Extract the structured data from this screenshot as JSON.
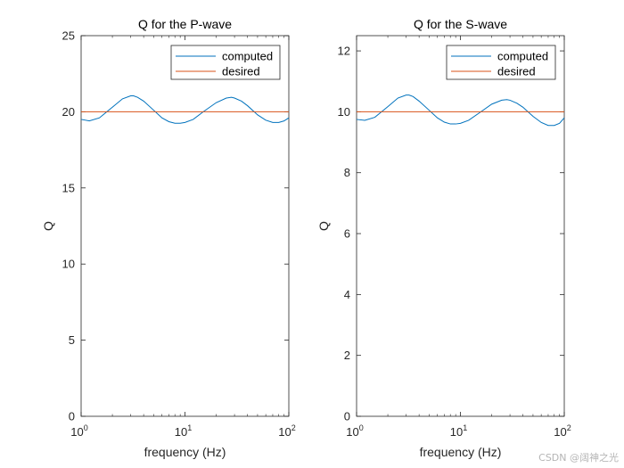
{
  "chart_data": [
    {
      "type": "line",
      "title": "Q for the P-wave",
      "xlabel": "frequency (Hz)",
      "ylabel": "Q",
      "xscale": "log",
      "xlim": [
        1,
        100
      ],
      "ylim": [
        0,
        25
      ],
      "yticks": [
        0,
        5,
        10,
        15,
        20,
        25
      ],
      "xtick_values": [
        1,
        10,
        100
      ],
      "xtick_labels": [
        {
          "base": "10",
          "exp": "0"
        },
        {
          "base": "10",
          "exp": "1"
        },
        {
          "base": "10",
          "exp": "2"
        }
      ],
      "legend_position": "top-right",
      "series": [
        {
          "name": "computed",
          "color": "#0072BD",
          "x": [
            1.0,
            1.2,
            1.5,
            2.0,
            2.5,
            3.0,
            3.2,
            3.5,
            4.0,
            5.0,
            6.0,
            7.0,
            8.0,
            9.0,
            10.0,
            12.0,
            15.0,
            20.0,
            25.0,
            28.0,
            30.0,
            35.0,
            40.0,
            50.0,
            60.0,
            70.0,
            80.0,
            90.0,
            100.0
          ],
          "y": [
            19.5,
            19.4,
            19.6,
            20.3,
            20.85,
            21.05,
            21.05,
            20.95,
            20.7,
            20.1,
            19.6,
            19.35,
            19.25,
            19.25,
            19.3,
            19.5,
            20.0,
            20.6,
            20.9,
            20.95,
            20.9,
            20.7,
            20.4,
            19.8,
            19.45,
            19.3,
            19.3,
            19.4,
            19.6
          ]
        },
        {
          "name": "desired",
          "color": "#D95319",
          "x": [
            1,
            100
          ],
          "y": [
            20,
            20
          ]
        }
      ]
    },
    {
      "type": "line",
      "title": "Q for the S-wave",
      "xlabel": "frequency (Hz)",
      "ylabel": "Q",
      "xscale": "log",
      "xlim": [
        1,
        100
      ],
      "ylim": [
        0,
        12.5
      ],
      "yticks": [
        0,
        2,
        4,
        6,
        8,
        10,
        12
      ],
      "xtick_values": [
        1,
        10,
        100
      ],
      "xtick_labels": [
        {
          "base": "10",
          "exp": "0"
        },
        {
          "base": "10",
          "exp": "1"
        },
        {
          "base": "10",
          "exp": "2"
        }
      ],
      "legend_position": "top-right",
      "series": [
        {
          "name": "computed",
          "color": "#0072BD",
          "x": [
            1.0,
            1.2,
            1.5,
            2.0,
            2.5,
            3.0,
            3.2,
            3.5,
            4.0,
            5.0,
            6.0,
            7.0,
            8.0,
            9.0,
            10.0,
            12.0,
            15.0,
            20.0,
            25.0,
            28.0,
            30.0,
            35.0,
            40.0,
            50.0,
            60.0,
            70.0,
            80.0,
            90.0,
            100.0
          ],
          "y": [
            9.75,
            9.72,
            9.82,
            10.17,
            10.45,
            10.55,
            10.55,
            10.5,
            10.35,
            10.05,
            9.8,
            9.66,
            9.6,
            9.6,
            9.62,
            9.72,
            9.95,
            10.25,
            10.38,
            10.4,
            10.38,
            10.28,
            10.15,
            9.85,
            9.65,
            9.55,
            9.55,
            9.62,
            9.8
          ]
        },
        {
          "name": "desired",
          "color": "#D95319",
          "x": [
            1,
            100
          ],
          "y": [
            10,
            10
          ]
        }
      ]
    }
  ],
  "watermark": "CSDN @阔神之光"
}
